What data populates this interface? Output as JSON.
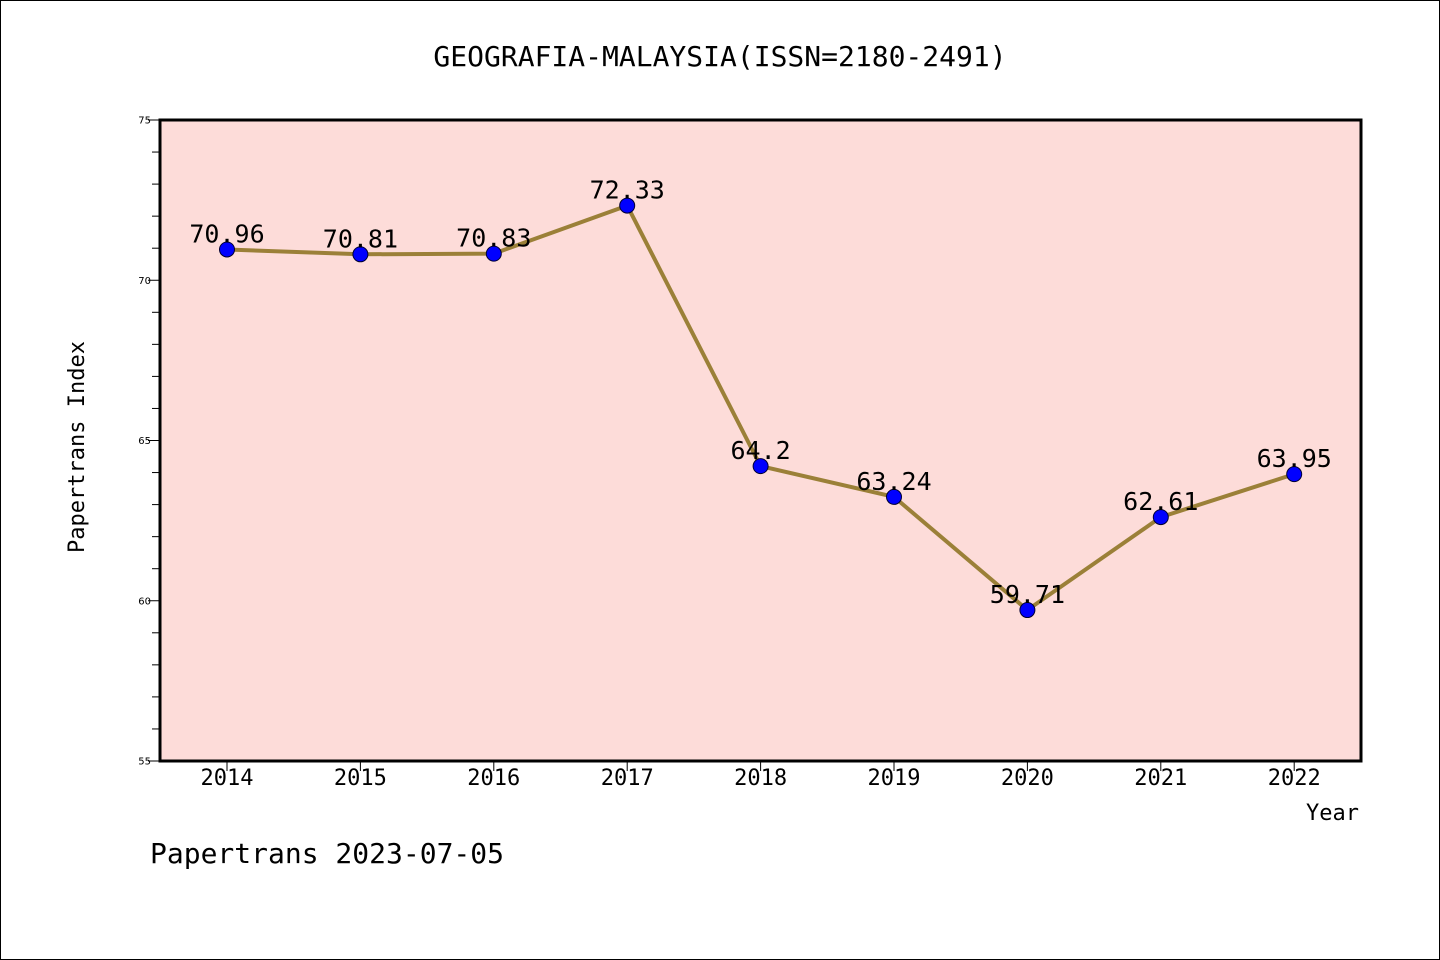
{
  "chart_data": {
    "type": "line",
    "title": "GEOGRAFIA-MALAYSIA(ISSN=2180-2491)",
    "xlabel": "Year",
    "ylabel": "Papertrans Index",
    "x": [
      "2014",
      "2015",
      "2016",
      "2017",
      "2018",
      "2019",
      "2020",
      "2021",
      "2022"
    ],
    "values": [
      70.96,
      70.81,
      70.83,
      72.33,
      64.2,
      63.24,
      59.71,
      62.61,
      63.95
    ],
    "data_labels": [
      "70.96",
      "70.81",
      "70.83",
      "72.33",
      "64.2",
      "63.24",
      "59.71",
      "62.61",
      "63.95"
    ],
    "ylim": [
      55,
      75
    ],
    "yticks": [
      "55",
      "60",
      "65",
      "70",
      "75"
    ],
    "grid": false,
    "colors": {
      "plot_background": "#fddcd9",
      "line": "#9b8038",
      "marker": "#0000ff"
    }
  },
  "footer": "Papertrans 2023-07-05"
}
